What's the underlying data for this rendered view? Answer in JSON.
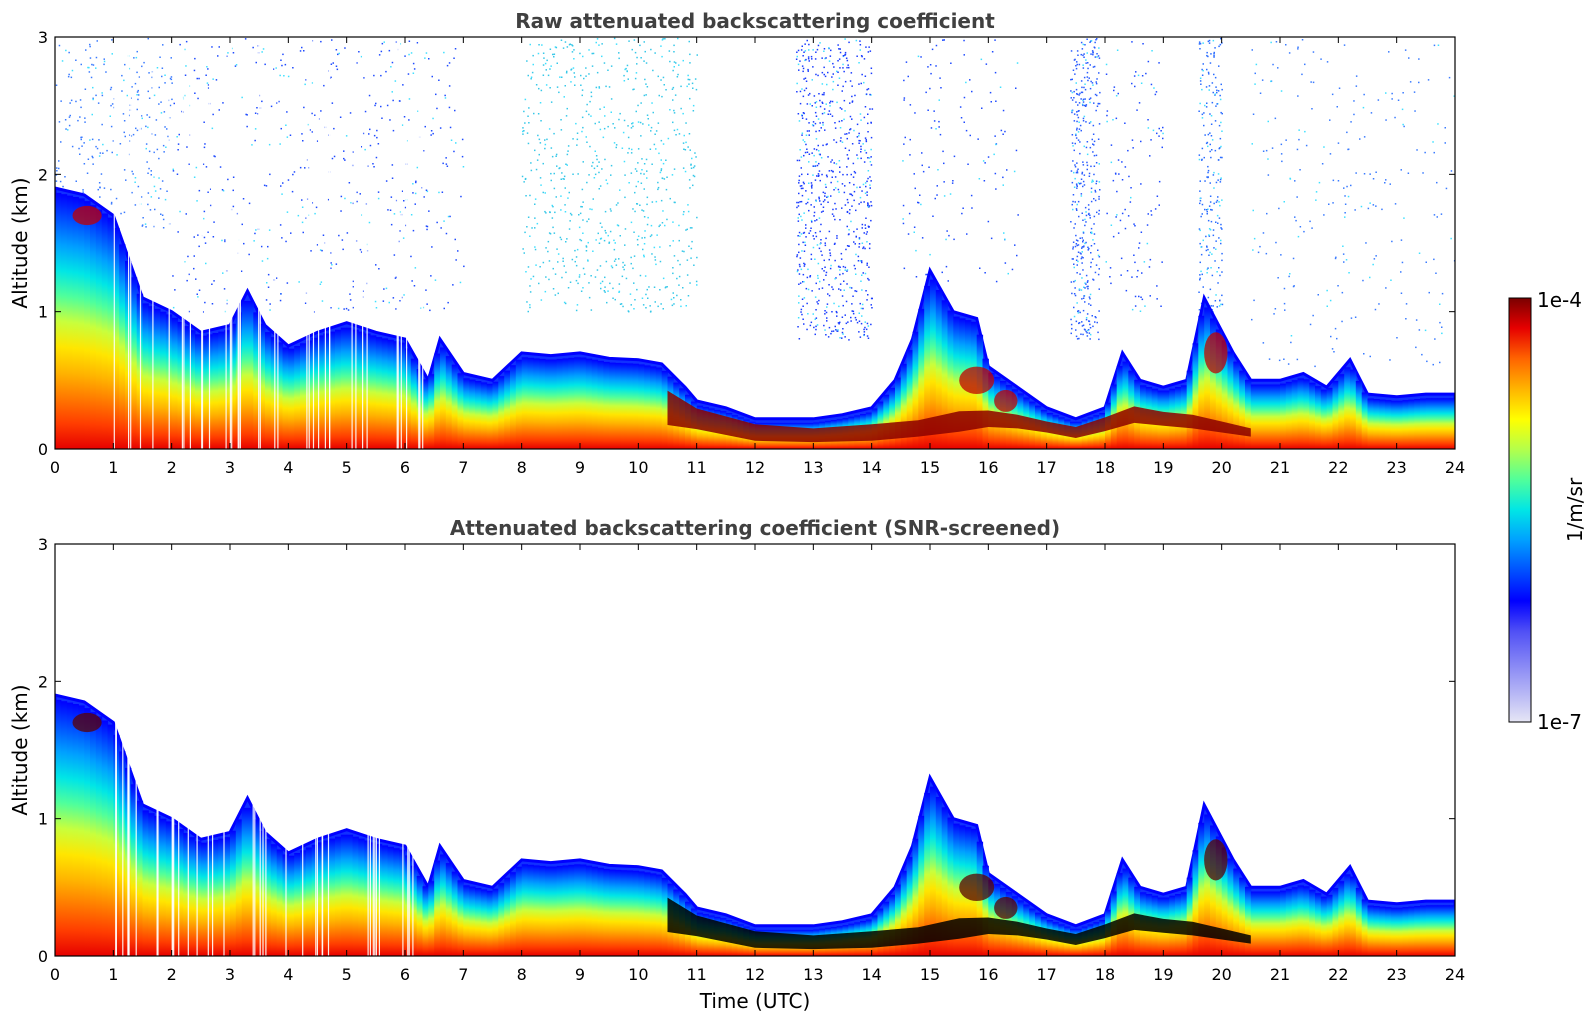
{
  "chart_data": [
    {
      "type": "heatmap",
      "title": "Raw attenuated backscattering coefficient",
      "xlabel": "",
      "ylabel": "Altitude (km)",
      "xlim": [
        0,
        24
      ],
      "ylim": [
        0,
        3
      ],
      "x_ticks": [
        "0",
        "1",
        "2",
        "3",
        "4",
        "5",
        "6",
        "7",
        "8",
        "9",
        "10",
        "11",
        "12",
        "13",
        "14",
        "15",
        "16",
        "17",
        "18",
        "19",
        "20",
        "21",
        "22",
        "23",
        "24"
      ],
      "y_ticks": [
        "0",
        "1",
        "2",
        "3"
      ],
      "layer_top_km": [
        [
          0,
          1.9
        ],
        [
          0.5,
          1.85
        ],
        [
          1,
          1.7
        ],
        [
          1.5,
          1.1
        ],
        [
          2,
          1.0
        ],
        [
          2.5,
          0.85
        ],
        [
          3,
          0.9
        ],
        [
          3.3,
          1.15
        ],
        [
          3.6,
          0.9
        ],
        [
          4,
          0.75
        ],
        [
          4.5,
          0.85
        ],
        [
          5,
          0.92
        ],
        [
          5.5,
          0.85
        ],
        [
          6,
          0.8
        ],
        [
          6.4,
          0.5
        ],
        [
          6.6,
          0.8
        ],
        [
          7,
          0.55
        ],
        [
          7.5,
          0.5
        ],
        [
          8,
          0.7
        ],
        [
          8.5,
          0.68
        ],
        [
          9,
          0.7
        ],
        [
          9.5,
          0.66
        ],
        [
          10,
          0.65
        ],
        [
          10.4,
          0.62
        ],
        [
          10.8,
          0.45
        ],
        [
          11,
          0.35
        ],
        [
          11.5,
          0.3
        ],
        [
          12,
          0.22
        ],
        [
          12.5,
          0.22
        ],
        [
          13,
          0.22
        ],
        [
          13.5,
          0.25
        ],
        [
          14,
          0.3
        ],
        [
          14.4,
          0.5
        ],
        [
          14.7,
          0.8
        ],
        [
          15,
          1.3
        ],
        [
          15.4,
          1.0
        ],
        [
          15.8,
          0.95
        ],
        [
          16,
          0.6
        ],
        [
          16.5,
          0.45
        ],
        [
          17,
          0.3
        ],
        [
          17.5,
          0.22
        ],
        [
          18,
          0.3
        ],
        [
          18.3,
          0.7
        ],
        [
          18.6,
          0.5
        ],
        [
          19,
          0.45
        ],
        [
          19.4,
          0.5
        ],
        [
          19.7,
          1.1
        ],
        [
          20.2,
          0.7
        ],
        [
          20.5,
          0.5
        ],
        [
          21,
          0.5
        ],
        [
          21.4,
          0.55
        ],
        [
          21.8,
          0.45
        ],
        [
          22.2,
          0.65
        ],
        [
          22.5,
          0.4
        ],
        [
          23,
          0.38
        ],
        [
          23.5,
          0.4
        ],
        [
          24,
          0.4
        ]
      ],
      "dense_layer": [
        [
          10.5,
          0.3,
          0.25
        ],
        [
          11,
          0.22,
          0.15
        ],
        [
          12,
          0.12,
          0.12
        ],
        [
          13,
          0.1,
          0.1
        ],
        [
          14,
          0.12,
          0.12
        ],
        [
          14.8,
          0.15,
          0.12
        ],
        [
          15.5,
          0.2,
          0.15
        ],
        [
          16,
          0.22,
          0.12
        ],
        [
          16.5,
          0.2,
          0.1
        ],
        [
          17,
          0.16,
          0.08
        ],
        [
          17.5,
          0.12,
          0.08
        ],
        [
          18,
          0.18,
          0.1
        ],
        [
          18.5,
          0.25,
          0.12
        ],
        [
          19,
          0.22,
          0.1
        ],
        [
          19.5,
          0.2,
          0.1
        ],
        [
          20,
          0.16,
          0.08
        ],
        [
          20.5,
          0.12,
          0.06
        ]
      ],
      "elevated_features": [
        [
          0.55,
          1.7,
          0.25,
          0.07
        ],
        [
          15.8,
          0.5,
          0.3,
          0.1
        ],
        [
          16.3,
          0.35,
          0.2,
          0.08
        ],
        [
          19.9,
          0.7,
          0.2,
          0.15
        ]
      ],
      "noise_regions": [
        [
          0,
          2,
          1.6,
          3,
          0.5,
          "#3a7bff"
        ],
        [
          2,
          7,
          1.0,
          3,
          0.25,
          "#1f4bff"
        ],
        [
          8,
          11,
          1.0,
          3,
          0.6,
          "#37c8e8"
        ],
        [
          12.7,
          14.0,
          0.8,
          3,
          1.3,
          "#1a3cff"
        ],
        [
          17.4,
          17.9,
          0.8,
          3,
          1.8,
          "#2a5cff"
        ],
        [
          19.6,
          20,
          1.0,
          3,
          1.4,
          "#2a6cff"
        ],
        [
          14.5,
          16.5,
          1.2,
          3,
          0.2,
          "#1f4bff"
        ],
        [
          18,
          19,
          1.0,
          3,
          0.3,
          "#1f4bff"
        ],
        [
          20.5,
          24,
          0.6,
          3,
          0.15,
          "#3a7bff"
        ]
      ]
    },
    {
      "type": "heatmap",
      "title": "Attenuated backscattering coefficient (SNR-screened)",
      "xlabel": "Time (UTC)",
      "ylabel": "Altitude (km)",
      "xlim": [
        0,
        24
      ],
      "ylim": [
        0,
        3
      ],
      "x_ticks": [
        "0",
        "1",
        "2",
        "3",
        "4",
        "5",
        "6",
        "7",
        "8",
        "9",
        "10",
        "11",
        "12",
        "13",
        "14",
        "15",
        "16",
        "17",
        "18",
        "19",
        "20",
        "21",
        "22",
        "23",
        "24"
      ],
      "y_ticks": [
        "0",
        "1",
        "2",
        "3"
      ],
      "same_profile_as_raw": true,
      "saturated_color": "#000000"
    }
  ],
  "colorbar": {
    "label": "1/m/sr",
    "max_label": "1e-4",
    "min_label": "1e-7",
    "range": [
      1e-07,
      0.0001
    ],
    "scale": "log",
    "colors": [
      "#e6e6f5",
      "#b4b4f5",
      "#8282f5",
      "#5050f5",
      "#0000ff",
      "#0050ff",
      "#00a0ff",
      "#00e6e6",
      "#50ff9b",
      "#b4ff4b",
      "#ffff00",
      "#ffb400",
      "#ff6400",
      "#e60000",
      "#7a0000"
    ]
  }
}
